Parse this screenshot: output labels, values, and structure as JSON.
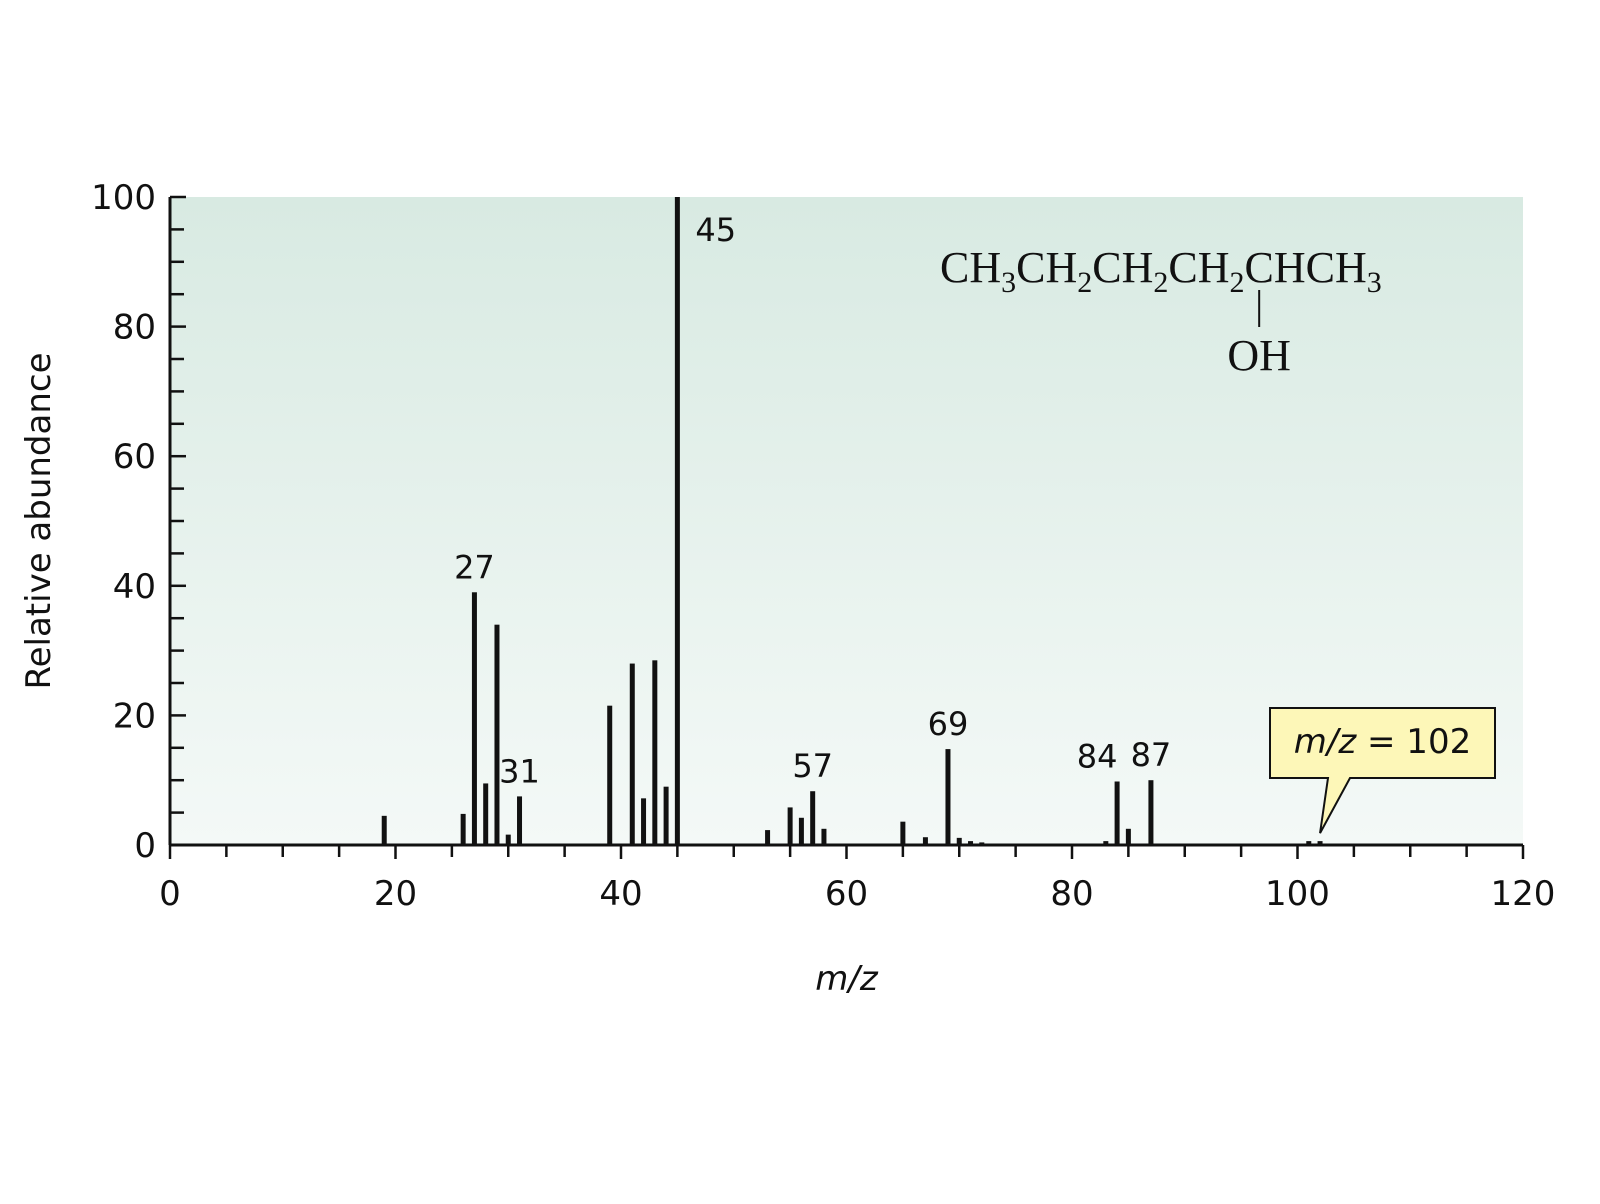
{
  "chart_data": {
    "type": "bar",
    "xlabel": "m/z",
    "ylabel": "Relative abundance",
    "xlim": [
      0,
      120
    ],
    "ylim": [
      0,
      100
    ],
    "x_ticks": [
      "0",
      "20",
      "40",
      "60",
      "80",
      "100",
      "120"
    ],
    "y_ticks": [
      "0",
      "20",
      "40",
      "60",
      "80",
      "100"
    ],
    "x_tick_values": [
      0,
      20,
      40,
      60,
      80,
      100,
      120
    ],
    "y_tick_values": [
      0,
      20,
      40,
      60,
      80,
      100
    ],
    "x_minor_step": 5,
    "y_minor_step": 5,
    "grid": false,
    "background": "gradient",
    "colors": {
      "bar": "#111111",
      "bg_top": "#d8eae2",
      "bg_bottom": "#f4f9f7",
      "callout_fill": "#fdf7b8",
      "axis": "#111111"
    },
    "peaks": [
      {
        "x": 19,
        "y": 4.5
      },
      {
        "x": 26,
        "y": 4.8
      },
      {
        "x": 27,
        "y": 39
      },
      {
        "x": 28,
        "y": 9.5
      },
      {
        "x": 29,
        "y": 34
      },
      {
        "x": 30,
        "y": 1.6
      },
      {
        "x": 31,
        "y": 7.5
      },
      {
        "x": 39,
        "y": 21.5
      },
      {
        "x": 41,
        "y": 28
      },
      {
        "x": 42,
        "y": 7.2
      },
      {
        "x": 43,
        "y": 28.5
      },
      {
        "x": 44,
        "y": 9
      },
      {
        "x": 45,
        "y": 100
      },
      {
        "x": 53,
        "y": 2.3
      },
      {
        "x": 55,
        "y": 5.8
      },
      {
        "x": 56,
        "y": 4.2
      },
      {
        "x": 57,
        "y": 8.3
      },
      {
        "x": 58,
        "y": 2.5
      },
      {
        "x": 65,
        "y": 3.6
      },
      {
        "x": 67,
        "y": 1.2
      },
      {
        "x": 69,
        "y": 14.8
      },
      {
        "x": 70,
        "y": 1.1
      },
      {
        "x": 71,
        "y": 0.6
      },
      {
        "x": 72,
        "y": 0.4
      },
      {
        "x": 83,
        "y": 0.6
      },
      {
        "x": 84,
        "y": 9.8
      },
      {
        "x": 85,
        "y": 2.5
      },
      {
        "x": 87,
        "y": 10
      },
      {
        "x": 101,
        "y": 0.6
      },
      {
        "x": 102,
        "y": 0.6
      }
    ],
    "peak_labels": [
      {
        "x": 27,
        "y": 39,
        "text": "27",
        "pos": "top"
      },
      {
        "x": 31,
        "y": 7.5,
        "text": "31",
        "pos": "top"
      },
      {
        "x": 45,
        "y": 100,
        "text": "45",
        "pos": "right"
      },
      {
        "x": 57,
        "y": 8.3,
        "text": "57",
        "pos": "top"
      },
      {
        "x": 69,
        "y": 14.8,
        "text": "69",
        "pos": "top"
      },
      {
        "x": 84,
        "y": 9.8,
        "text": "84",
        "pos": "top-left"
      },
      {
        "x": 87,
        "y": 10,
        "text": "87",
        "pos": "top"
      }
    ],
    "annotation": {
      "text_italic": "m/z",
      "text_rest": " = 102",
      "points_to_x": 102,
      "points_to_y": 0.6
    },
    "structure": {
      "main": [
        {
          "t": "CH",
          "sub": "3"
        },
        {
          "t": "CH",
          "sub": "2"
        },
        {
          "t": "CH",
          "sub": "2"
        },
        {
          "t": "CH",
          "sub": "2"
        },
        {
          "t": "CHCH",
          "sub": "3"
        }
      ],
      "substituent": "OH",
      "substituent_index": 4
    }
  }
}
